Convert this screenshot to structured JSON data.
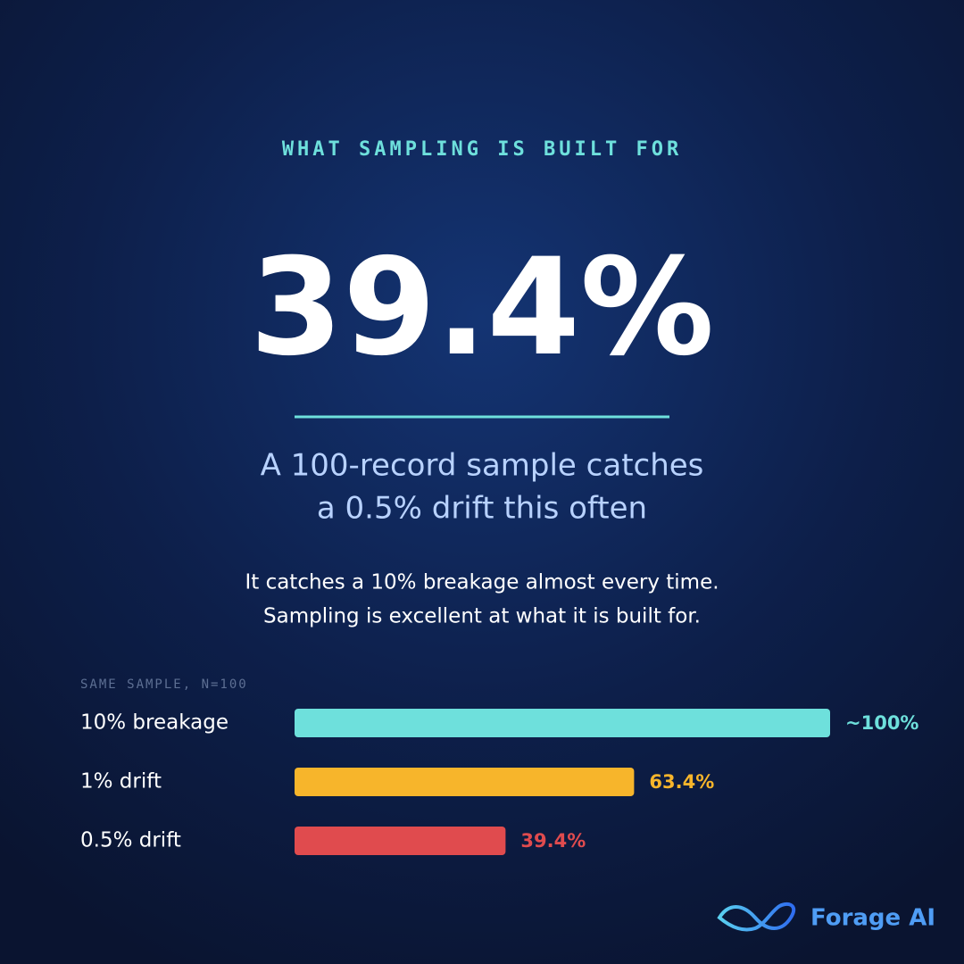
{
  "eyebrow": "WHAT SAMPLING IS BUILT FOR",
  "headline": "39.4%",
  "subtitle": [
    "A 100-record sample catches",
    "a 0.5% drift this often"
  ],
  "body": [
    "It catches a 10% breakage almost every time.",
    "Sampling is excellent at what it is built for."
  ],
  "brand": "Forage AI",
  "chart_data": {
    "type": "bar",
    "orientation": "horizontal",
    "title": "SAME SAMPLE, N=100",
    "categories": [
      "10% breakage",
      "1% drift",
      "0.5% drift"
    ],
    "values": [
      100,
      63.4,
      39.4
    ],
    "value_labels": [
      "~100%",
      "63.4%",
      "39.4%"
    ],
    "colors": [
      "#6ee0dc",
      "#f7b52b",
      "#e04b4e"
    ],
    "xlim": [
      0,
      100
    ]
  }
}
